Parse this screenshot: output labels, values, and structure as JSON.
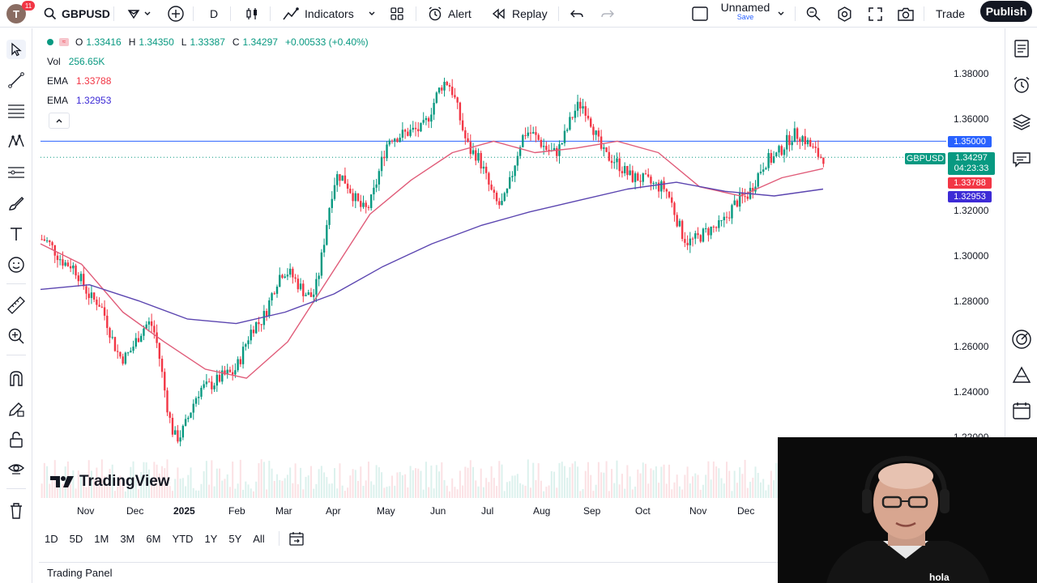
{
  "topbar": {
    "avatar_letter": "T",
    "avatar_badge": "11",
    "symbol": "GBPUSD",
    "interval": "D",
    "indicators_label": "Indicators",
    "alert_label": "Alert",
    "replay_label": "Replay",
    "layout_name": "Unnamed",
    "layout_save": "Save",
    "trade_label": "Trade",
    "publish_label": "Publish"
  },
  "legend": {
    "o_label": "O",
    "o": "1.33416",
    "h_label": "H",
    "h": "1.34350",
    "l_label": "L",
    "l": "1.33387",
    "c_label": "C",
    "c": "1.34297",
    "change": "+0.00533 (+0.40%)",
    "vol_label": "Vol",
    "vol": "256.65K",
    "ema1_label": "EMA",
    "ema1": "1.33788",
    "ema2_label": "EMA",
    "ema2": "1.32953"
  },
  "price_scale": {
    "ticks": [
      "1.38000",
      "1.36000",
      "1.32000",
      "1.30000",
      "1.28000",
      "1.26000",
      "1.24000",
      "1.22000"
    ],
    "line_label": "1.35000",
    "symbol_tag": "GBPUSD",
    "last_price": "1.34297",
    "countdown": "04:23:33",
    "ema1_tag": "1.33788",
    "ema2_tag": "1.32953"
  },
  "time_axis": [
    "Nov",
    "Dec",
    "2025",
    "Feb",
    "Mar",
    "Apr",
    "May",
    "Jun",
    "Jul",
    "Aug",
    "Sep",
    "Oct",
    "Nov",
    "Dec"
  ],
  "ranges": [
    "1D",
    "5D",
    "1M",
    "3M",
    "6M",
    "YTD",
    "1Y",
    "5Y",
    "All"
  ],
  "trading_panel_label": "Trading Panel",
  "watermark": "TradingView",
  "webcam_brand": "hola",
  "colors": {
    "up": "#089981",
    "down": "#f23645",
    "ema_fast": "#e05c79",
    "ema_slow": "#5b45b0",
    "hline": "#2962ff",
    "ema1_tag": "#f23645",
    "ema2_tag": "#3d2bd6",
    "last_tag": "#089981"
  },
  "chart_data": {
    "type": "candlestick",
    "symbol": "GBPUSD",
    "interval": "D",
    "ylim": [
      1.215,
      1.39
    ],
    "horizontal_line": 1.35,
    "anchors": [
      {
        "x": "Oct 20",
        "y": 1.307
      },
      {
        "x": "Nov 5",
        "y": 1.296
      },
      {
        "x": "Nov 25",
        "y": 1.28
      },
      {
        "x": "Dec 10",
        "y": 1.255
      },
      {
        "x": "Dec 20",
        "y": 1.27
      },
      {
        "x": "Jan 13",
        "y": 1.22
      },
      {
        "x": "Jan 31",
        "y": 1.242
      },
      {
        "x": "Feb 18",
        "y": 1.248
      },
      {
        "x": "Mar 8",
        "y": 1.27
      },
      {
        "x": "Mar 20",
        "y": 1.293
      },
      {
        "x": "Apr 8",
        "y": 1.282
      },
      {
        "x": "Apr 28",
        "y": 1.335
      },
      {
        "x": "May 12",
        "y": 1.32
      },
      {
        "x": "May 27",
        "y": 1.352
      },
      {
        "x": "Jun 12",
        "y": 1.355
      },
      {
        "x": "Jul 1",
        "y": 1.376
      },
      {
        "x": "Jul 20",
        "y": 1.345
      },
      {
        "x": "Aug 1",
        "y": 1.322
      },
      {
        "x": "Aug 14",
        "y": 1.354
      },
      {
        "x": "Sep 5",
        "y": 1.345
      },
      {
        "x": "Sep 17",
        "y": 1.366
      },
      {
        "x": "Oct 1",
        "y": 1.343
      },
      {
        "x": "Oct 14",
        "y": 1.334
      },
      {
        "x": "Oct 28",
        "y": 1.33
      },
      {
        "x": "Nov 5",
        "y": 1.306
      },
      {
        "x": "Nov 20",
        "y": 1.312
      },
      {
        "x": "Dec 1",
        "y": 1.325
      },
      {
        "x": "Dec 18",
        "y": 1.342
      },
      {
        "x": "Dec 30",
        "y": 1.353
      },
      {
        "x": "Jan 13",
        "y": 1.343
      }
    ],
    "ema_fast": [
      1.305,
      1.296,
      1.275,
      1.262,
      1.25,
      1.246,
      1.262,
      1.29,
      1.318,
      1.333,
      1.345,
      1.35,
      1.345,
      1.347,
      1.35,
      1.345,
      1.33,
      1.326,
      1.334,
      1.338
    ],
    "ema_slow": [
      1.285,
      1.287,
      1.28,
      1.272,
      1.27,
      1.275,
      1.283,
      1.295,
      1.305,
      1.313,
      1.319,
      1.324,
      1.329,
      1.332,
      1.328,
      1.326,
      1.329
    ],
    "last": {
      "open": 1.33416,
      "high": 1.3435,
      "low": 1.33387,
      "close": 1.34297
    }
  }
}
